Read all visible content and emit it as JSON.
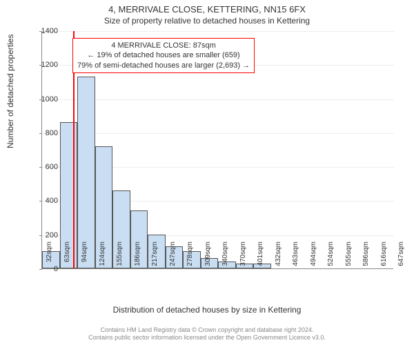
{
  "title": "4, MERRIVALE CLOSE, KETTERING, NN15 6FX",
  "subtitle": "Size of property relative to detached houses in Kettering",
  "ylabel": "Number of detached properties",
  "xlabel": "Distribution of detached houses by size in Kettering",
  "chart": {
    "type": "histogram",
    "ylim": [
      0,
      1400
    ],
    "ytick_step": 200,
    "bar_fill": "#c9def2",
    "bar_border": "#555555",
    "grid_color": "#888888",
    "background_color": "#ffffff",
    "marker_color": "#ff0000",
    "marker_x_value": 87,
    "x_start": 32,
    "bin_width": 31,
    "categories": [
      "32sqm",
      "63sqm",
      "94sqm",
      "124sqm",
      "155sqm",
      "186sqm",
      "217sqm",
      "247sqm",
      "278sqm",
      "309sqm",
      "340sqm",
      "370sqm",
      "401sqm",
      "432sqm",
      "463sqm",
      "494sqm",
      "524sqm",
      "555sqm",
      "586sqm",
      "616sqm",
      "647sqm"
    ],
    "values": [
      100,
      860,
      1130,
      720,
      460,
      340,
      200,
      130,
      100,
      60,
      40,
      30,
      30,
      0,
      0,
      0,
      0,
      0,
      0,
      0
    ]
  },
  "annotation": {
    "line1": "4 MERRIVALE CLOSE: 87sqm",
    "line2": "← 19% of detached houses are smaller (659)",
    "line3": "79% of semi-detached houses are larger (2,693) →",
    "border_color": "#ff0000"
  },
  "footer": {
    "line1": "Contains HM Land Registry data © Crown copyright and database right 2024.",
    "line2": "Contains public sector information licensed under the Open Government Licence v3.0."
  }
}
